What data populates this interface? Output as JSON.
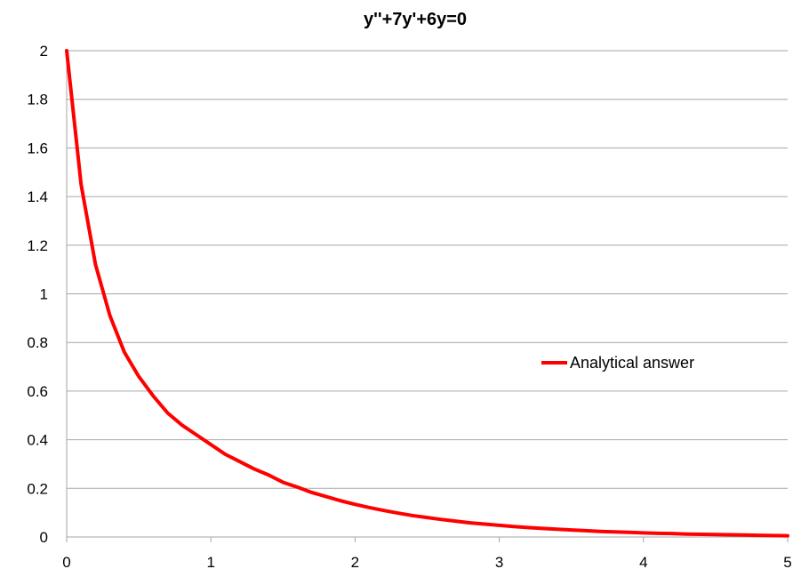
{
  "chart_data": {
    "type": "line",
    "title": "y''+7y'+6y=0",
    "xlabel": "",
    "ylabel": "",
    "xlim": [
      0,
      5
    ],
    "ylim": [
      0,
      2
    ],
    "x_ticks": [
      "0",
      "1",
      "2",
      "3",
      "4",
      "5"
    ],
    "y_ticks": [
      "0",
      "0.2",
      "0.4",
      "0.6",
      "0.8",
      "1",
      "1.2",
      "1.4",
      "1.6",
      "1.8",
      "2"
    ],
    "grid": true,
    "legend_position": "right",
    "series": [
      {
        "name": "Analytical answer",
        "color": "#ff0000",
        "x": [
          0,
          0.1,
          0.2,
          0.3,
          0.4,
          0.5,
          0.6,
          0.7,
          0.8,
          0.9,
          1.0,
          1.1,
          1.2,
          1.3,
          1.4,
          1.5,
          1.6,
          1.7,
          1.8,
          1.9,
          2.0,
          2.1,
          2.2,
          2.3,
          2.4,
          2.5,
          2.6,
          2.7,
          2.8,
          2.9,
          3.0,
          3.1,
          3.2,
          3.3,
          3.4,
          3.5,
          3.6,
          3.7,
          3.8,
          3.9,
          4.0,
          4.1,
          4.2,
          4.3,
          4.4,
          4.5,
          4.6,
          4.7,
          4.8,
          4.9,
          5.0
        ],
        "y": [
          2.0,
          1.45,
          1.12,
          0.91,
          0.76,
          0.66,
          0.58,
          0.51,
          0.46,
          0.42,
          0.38,
          0.34,
          0.31,
          0.28,
          0.255,
          0.225,
          0.205,
          0.183,
          0.166,
          0.149,
          0.134,
          0.121,
          0.109,
          0.098,
          0.088,
          0.08,
          0.072,
          0.065,
          0.058,
          0.053,
          0.048,
          0.043,
          0.039,
          0.035,
          0.032,
          0.029,
          0.026,
          0.023,
          0.021,
          0.019,
          0.017,
          0.015,
          0.014,
          0.012,
          0.011,
          0.01,
          0.009,
          0.008,
          0.007,
          0.006,
          0.005
        ]
      }
    ]
  }
}
